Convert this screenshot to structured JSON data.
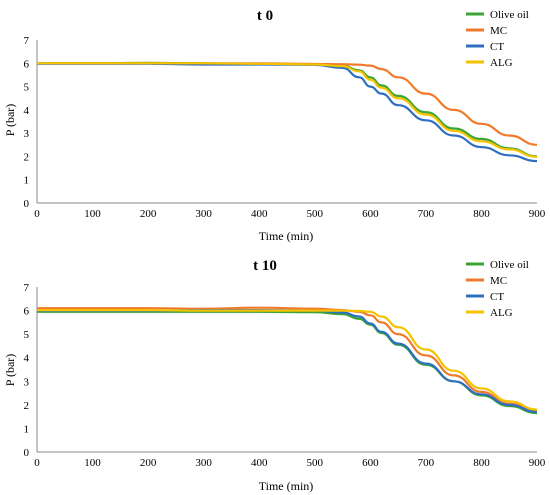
{
  "chart_data": [
    {
      "type": "line",
      "title": "t 0",
      "xlabel": "Time (min)",
      "ylabel": "P (bar)",
      "xlim": [
        0,
        900
      ],
      "ylim": [
        0,
        7
      ],
      "xticks": [
        "0",
        "100",
        "200",
        "300",
        "400",
        "500",
        "600",
        "700",
        "800",
        "900"
      ],
      "yticks": [
        "0",
        "1",
        "2",
        "3",
        "4",
        "5",
        "6",
        "7"
      ],
      "grid": false,
      "legend_position": "top-right",
      "x": [
        0,
        100,
        200,
        300,
        400,
        500,
        550,
        580,
        600,
        620,
        650,
        700,
        750,
        800,
        850,
        900
      ],
      "series": [
        {
          "name": "Olive oil",
          "color": "#3aa535",
          "values": [
            6.0,
            6.0,
            6.02,
            6.0,
            5.98,
            5.95,
            5.9,
            5.7,
            5.4,
            5.05,
            4.6,
            3.9,
            3.2,
            2.75,
            2.35,
            2.0
          ]
        },
        {
          "name": "MC",
          "color": "#f07a2a",
          "values": [
            6.0,
            6.0,
            6.0,
            6.0,
            6.0,
            5.97,
            5.96,
            5.94,
            5.9,
            5.75,
            5.4,
            4.7,
            4.0,
            3.4,
            2.9,
            2.5
          ]
        },
        {
          "name": "CT",
          "color": "#2e6fc1",
          "values": [
            5.98,
            5.98,
            5.98,
            5.95,
            5.95,
            5.93,
            5.8,
            5.4,
            5.0,
            4.7,
            4.2,
            3.55,
            2.9,
            2.4,
            2.05,
            1.8
          ]
        },
        {
          "name": "ALG",
          "color": "#f5c200",
          "values": [
            6.0,
            6.0,
            6.0,
            6.0,
            5.98,
            5.95,
            5.88,
            5.65,
            5.3,
            4.95,
            4.5,
            3.8,
            3.1,
            2.65,
            2.3,
            1.98
          ]
        }
      ]
    },
    {
      "type": "line",
      "title": "t 10",
      "xlabel": "Time (min)",
      "ylabel": "P (bar)",
      "xlim": [
        0,
        900
      ],
      "ylim": [
        0,
        7
      ],
      "xticks": [
        "0",
        "100",
        "200",
        "300",
        "400",
        "500",
        "600",
        "700",
        "800",
        "900"
      ],
      "yticks": [
        "0",
        "1",
        "2",
        "3",
        "4",
        "5",
        "6",
        "7"
      ],
      "grid": false,
      "legend_position": "top-right",
      "x": [
        0,
        100,
        200,
        300,
        400,
        500,
        550,
        580,
        600,
        620,
        650,
        700,
        750,
        800,
        850,
        900
      ],
      "series": [
        {
          "name": "Olive oil",
          "color": "#3aa535",
          "values": [
            5.95,
            5.95,
            5.95,
            5.95,
            5.95,
            5.93,
            5.85,
            5.65,
            5.4,
            5.05,
            4.55,
            3.7,
            3.0,
            2.4,
            1.95,
            1.65
          ]
        },
        {
          "name": "MC",
          "color": "#f07a2a",
          "values": [
            6.1,
            6.1,
            6.1,
            6.08,
            6.12,
            6.08,
            6.02,
            5.95,
            5.8,
            5.5,
            5.0,
            4.1,
            3.25,
            2.55,
            2.05,
            1.75
          ]
        },
        {
          "name": "CT",
          "color": "#2e6fc1",
          "values": [
            6.0,
            6.0,
            6.0,
            6.02,
            6.02,
            6.0,
            5.92,
            5.75,
            5.45,
            5.1,
            4.6,
            3.75,
            3.0,
            2.45,
            2.0,
            1.7
          ]
        },
        {
          "name": "ALG",
          "color": "#f5c200",
          "values": [
            6.02,
            6.02,
            6.02,
            6.0,
            6.0,
            6.0,
            6.0,
            5.98,
            5.95,
            5.75,
            5.3,
            4.35,
            3.45,
            2.7,
            2.15,
            1.8
          ]
        }
      ]
    }
  ]
}
